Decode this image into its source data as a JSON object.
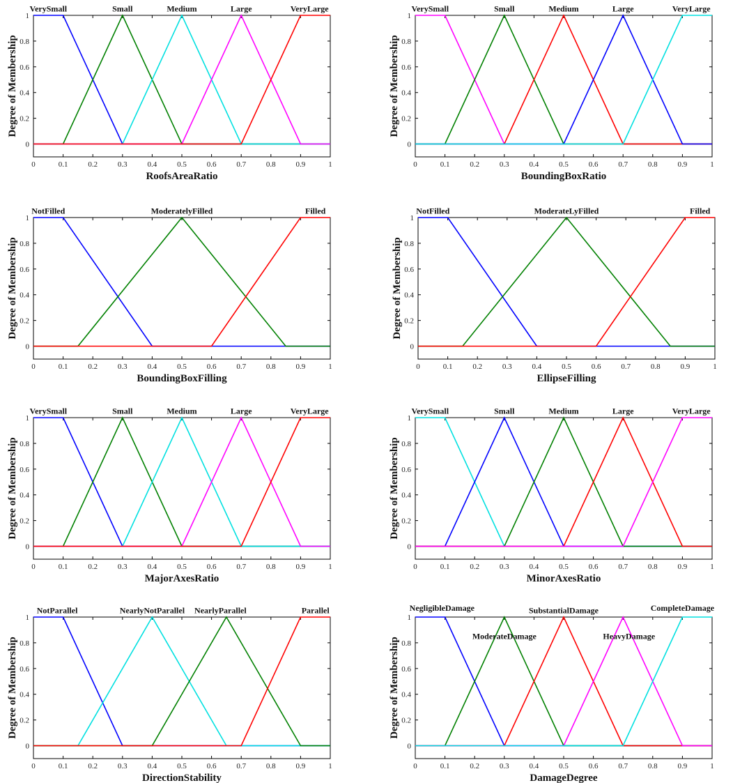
{
  "chart_data": [
    {
      "type": "line",
      "xlabel": "RoofsAreaRatio",
      "ylabel": "Degree of Membership",
      "xlim": [
        0,
        1
      ],
      "ylim": [
        -0.1,
        1
      ],
      "xticks": [
        "0",
        "0.1",
        "0.2",
        "0.3",
        "0.4",
        "0.5",
        "0.6",
        "0.7",
        "0.8",
        "0.9",
        "1"
      ],
      "yticks": [
        "0",
        "0.2",
        "0.4",
        "0.6",
        "0.8",
        "1"
      ],
      "series": [
        {
          "name": "VerySmall",
          "color": "#0000ff",
          "x": [
            0,
            0.1,
            0.3,
            1
          ],
          "y": [
            1,
            1,
            0,
            0
          ],
          "label_x": 0.05
        },
        {
          "name": "Small",
          "color": "#008000",
          "x": [
            0,
            0.1,
            0.3,
            0.5,
            1
          ],
          "y": [
            0,
            0,
            1,
            0,
            0
          ],
          "label_x": 0.3
        },
        {
          "name": "Medium",
          "color": "#00e0e0",
          "x": [
            0,
            0.3,
            0.5,
            0.7,
            1
          ],
          "y": [
            0,
            0,
            1,
            0,
            0
          ],
          "label_x": 0.5
        },
        {
          "name": "Large",
          "color": "#ff00ff",
          "x": [
            0,
            0.5,
            0.7,
            0.9,
            1
          ],
          "y": [
            0,
            0,
            1,
            0,
            0
          ],
          "label_x": 0.7
        },
        {
          "name": "VeryLarge",
          "color": "#ff0000",
          "x": [
            0,
            0.7,
            0.9,
            1
          ],
          "y": [
            0,
            0,
            1,
            1
          ],
          "label_x": 0.93
        }
      ]
    },
    {
      "type": "line",
      "xlabel": "BoundingBoxRatio",
      "ylabel": "Degree of Membership",
      "xlim": [
        0,
        1
      ],
      "ylim": [
        -0.1,
        1
      ],
      "xticks": [
        "0",
        "0.1",
        "0.2",
        "0.3",
        "0.4",
        "0.5",
        "0.6",
        "0.7",
        "0.8",
        "0.9",
        "1"
      ],
      "yticks": [
        "0",
        "0.2",
        "0.4",
        "0.6",
        "0.8",
        "1"
      ],
      "series": [
        {
          "name": "VerySmall",
          "color": "#ff00ff",
          "x": [
            0,
            0.1,
            0.3,
            1
          ],
          "y": [
            1,
            1,
            0,
            0
          ],
          "label_x": 0.05
        },
        {
          "name": "Small",
          "color": "#008000",
          "x": [
            0,
            0.1,
            0.3,
            0.5,
            1
          ],
          "y": [
            0,
            0,
            1,
            0,
            0
          ],
          "label_x": 0.3
        },
        {
          "name": "Medium",
          "color": "#ff0000",
          "x": [
            0,
            0.3,
            0.5,
            0.7,
            1
          ],
          "y": [
            0,
            0,
            1,
            0,
            0
          ],
          "label_x": 0.5
        },
        {
          "name": "Large",
          "color": "#0000ff",
          "x": [
            0,
            0.5,
            0.7,
            0.9,
            1
          ],
          "y": [
            0,
            0,
            1,
            0,
            0
          ],
          "label_x": 0.7
        },
        {
          "name": "VeryLarge",
          "color": "#00e0e0",
          "x": [
            0,
            0.7,
            0.9,
            1
          ],
          "y": [
            0,
            0,
            1,
            1
          ],
          "label_x": 0.93
        }
      ]
    },
    {
      "type": "line",
      "xlabel": "BoundingBoxFilling",
      "ylabel": "Degree of Membership",
      "xlim": [
        0,
        1
      ],
      "ylim": [
        -0.1,
        1
      ],
      "xticks": [
        "0",
        "0.1",
        "0.2",
        "0.3",
        "0.4",
        "0.5",
        "0.6",
        "0.7",
        "0.8",
        "0.9",
        "1"
      ],
      "yticks": [
        "0",
        "0.2",
        "0.4",
        "0.6",
        "0.8",
        "1"
      ],
      "series": [
        {
          "name": "NotFilled",
          "color": "#0000ff",
          "x": [
            0,
            0.1,
            0.4,
            1
          ],
          "y": [
            1,
            1,
            0,
            0
          ],
          "label_x": 0.05
        },
        {
          "name": "ModeratelyFilled",
          "color": "#008000",
          "x": [
            0,
            0.15,
            0.5,
            0.85,
            1
          ],
          "y": [
            0,
            0,
            1,
            0,
            0
          ],
          "label_x": 0.5
        },
        {
          "name": "Filled",
          "color": "#ff0000",
          "x": [
            0,
            0.6,
            0.9,
            1
          ],
          "y": [
            0,
            0,
            1,
            1
          ],
          "label_x": 0.95
        }
      ]
    },
    {
      "type": "line",
      "xlabel": "EllipseFilling",
      "ylabel": "Degree of Membership",
      "xlim": [
        0,
        1
      ],
      "ylim": [
        -0.1,
        1
      ],
      "xticks": [
        "0",
        "0.1",
        "0.2",
        "0.3",
        "0.4",
        "0.5",
        "0.6",
        "0.7",
        "0.8",
        "0.9",
        "1"
      ],
      "yticks": [
        "0",
        "0.2",
        "0.4",
        "0.6",
        "0.8",
        "1"
      ],
      "series": [
        {
          "name": "NotFilled",
          "color": "#0000ff",
          "x": [
            0,
            0.1,
            0.4,
            1
          ],
          "y": [
            1,
            1,
            0,
            0
          ],
          "label_x": 0.05
        },
        {
          "name": "ModerateLyFilled",
          "color": "#008000",
          "x": [
            0,
            0.15,
            0.5,
            0.85,
            1
          ],
          "y": [
            0,
            0,
            1,
            0,
            0
          ],
          "label_x": 0.5
        },
        {
          "name": "Filled",
          "color": "#ff0000",
          "x": [
            0,
            0.6,
            0.9,
            1
          ],
          "y": [
            0,
            0,
            1,
            1
          ],
          "label_x": 0.95
        }
      ]
    },
    {
      "type": "line",
      "xlabel": "MajorAxesRatio",
      "ylabel": "Degree of Membership",
      "xlim": [
        0,
        1
      ],
      "ylim": [
        -0.1,
        1
      ],
      "xticks": [
        "0",
        "0.1",
        "0.2",
        "0.3",
        "0.4",
        "0.5",
        "0.6",
        "0.7",
        "0.8",
        "0.9",
        "1"
      ],
      "yticks": [
        "0",
        "0.2",
        "0.4",
        "0.6",
        "0.8",
        "1"
      ],
      "series": [
        {
          "name": "VerySmall",
          "color": "#0000ff",
          "x": [
            0,
            0.1,
            0.3,
            1
          ],
          "y": [
            1,
            1,
            0,
            0
          ],
          "label_x": 0.05
        },
        {
          "name": "Small",
          "color": "#008000",
          "x": [
            0,
            0.1,
            0.3,
            0.5,
            1
          ],
          "y": [
            0,
            0,
            1,
            0,
            0
          ],
          "label_x": 0.3
        },
        {
          "name": "Medium",
          "color": "#00e0e0",
          "x": [
            0,
            0.3,
            0.5,
            0.7,
            1
          ],
          "y": [
            0,
            0,
            1,
            0,
            0
          ],
          "label_x": 0.5
        },
        {
          "name": "Large",
          "color": "#ff00ff",
          "x": [
            0,
            0.5,
            0.7,
            0.9,
            1
          ],
          "y": [
            0,
            0,
            1,
            0,
            0
          ],
          "label_x": 0.7
        },
        {
          "name": "VeryLarge",
          "color": "#ff0000",
          "x": [
            0,
            0.7,
            0.9,
            1
          ],
          "y": [
            0,
            0,
            1,
            1
          ],
          "label_x": 0.93
        }
      ]
    },
    {
      "type": "line",
      "xlabel": "MinorAxesRatio",
      "ylabel": "Degree of Membership",
      "xlim": [
        0,
        1
      ],
      "ylim": [
        -0.1,
        1
      ],
      "xticks": [
        "0",
        "0.1",
        "0.2",
        "0.3",
        "0.4",
        "0.5",
        "0.6",
        "0.7",
        "0.8",
        "0.9",
        "1"
      ],
      "yticks": [
        "0",
        "0.2",
        "0.4",
        "0.6",
        "0.8",
        "1"
      ],
      "series": [
        {
          "name": "VerySmall",
          "color": "#00e0e0",
          "x": [
            0,
            0.1,
            0.3,
            1
          ],
          "y": [
            1,
            1,
            0,
            0
          ],
          "label_x": 0.05
        },
        {
          "name": "Small",
          "color": "#0000ff",
          "x": [
            0,
            0.1,
            0.3,
            0.5,
            1
          ],
          "y": [
            0,
            0,
            1,
            0,
            0
          ],
          "label_x": 0.3
        },
        {
          "name": "Medium",
          "color": "#008000",
          "x": [
            0,
            0.3,
            0.5,
            0.7,
            1
          ],
          "y": [
            0,
            0,
            1,
            0,
            0
          ],
          "label_x": 0.5
        },
        {
          "name": "Large",
          "color": "#ff0000",
          "x": [
            0,
            0.5,
            0.7,
            0.9,
            1
          ],
          "y": [
            0,
            0,
            1,
            0,
            0
          ],
          "label_x": 0.7
        },
        {
          "name": "VeryLarge",
          "color": "#ff00ff",
          "x": [
            0,
            0.7,
            0.9,
            1
          ],
          "y": [
            0,
            0,
            1,
            1
          ],
          "label_x": 0.93
        }
      ]
    },
    {
      "type": "line",
      "xlabel": "DirectionStability",
      "ylabel": "Degree of Membership",
      "xlim": [
        0,
        1
      ],
      "ylim": [
        -0.1,
        1
      ],
      "xticks": [
        "0",
        "0.1",
        "0.2",
        "0.3",
        "0.4",
        "0.5",
        "0.6",
        "0.7",
        "0.8",
        "0.9",
        "1"
      ],
      "yticks": [
        "0",
        "0.2",
        "0.4",
        "0.6",
        "0.8",
        "1"
      ],
      "series": [
        {
          "name": "NotParallel",
          "color": "#0000ff",
          "x": [
            0,
            0.1,
            0.3,
            1
          ],
          "y": [
            1,
            1,
            0,
            0
          ],
          "label_x": 0.08
        },
        {
          "name": "NearlyNotParallel",
          "color": "#00e0e0",
          "x": [
            0,
            0.15,
            0.4,
            0.65,
            1
          ],
          "y": [
            0,
            0,
            1,
            0,
            0
          ],
          "label_x": 0.4
        },
        {
          "name": "NearlyParallel",
          "color": "#008000",
          "x": [
            0,
            0.4,
            0.65,
            0.9,
            1
          ],
          "y": [
            0,
            0,
            1,
            0,
            0
          ],
          "label_x": 0.63
        },
        {
          "name": "Parallel",
          "color": "#ff0000",
          "x": [
            0,
            0.7,
            0.9,
            1
          ],
          "y": [
            0,
            0,
            1,
            1
          ],
          "label_x": 0.95
        }
      ]
    },
    {
      "type": "line",
      "xlabel": "DamageDegree",
      "ylabel": "Degree of Membership",
      "xlim": [
        0,
        1
      ],
      "ylim": [
        -0.1,
        1
      ],
      "xticks": [
        "0",
        "0.1",
        "0.2",
        "0.3",
        "0.4",
        "0.5",
        "0.6",
        "0.7",
        "0.8",
        "0.9",
        "1"
      ],
      "yticks": [
        "0",
        "0.2",
        "0.4",
        "0.6",
        "0.8",
        "1"
      ],
      "series": [
        {
          "name": "NegligibleDamage",
          "color": "#0000ff",
          "x": [
            0,
            0.1,
            0.3,
            1
          ],
          "y": [
            1,
            1,
            0,
            0
          ],
          "label_x": 0.09,
          "label_y": 1.05
        },
        {
          "name": "ModerateDamage",
          "color": "#008000",
          "x": [
            0,
            0.1,
            0.3,
            0.5,
            1
          ],
          "y": [
            0,
            0,
            1,
            0,
            0
          ],
          "label_x": 0.3,
          "label_y": 0.83
        },
        {
          "name": "SubstantialDamage",
          "color": "#ff0000",
          "x": [
            0,
            0.3,
            0.5,
            0.7,
            1
          ],
          "y": [
            0,
            0,
            1,
            0,
            0
          ],
          "label_x": 0.5,
          "label_y": 1.03
        },
        {
          "name": "HeavyDamage",
          "color": "#ff00ff",
          "x": [
            0,
            0.5,
            0.7,
            0.9,
            1
          ],
          "y": [
            0,
            0,
            1,
            0,
            0
          ],
          "label_x": 0.72,
          "label_y": 0.83
        },
        {
          "name": "CompleteDamage",
          "color": "#00e0e0",
          "x": [
            0,
            0.7,
            0.9,
            1
          ],
          "y": [
            0,
            0,
            1,
            1
          ],
          "label_x": 0.9,
          "label_y": 1.05
        }
      ]
    }
  ]
}
